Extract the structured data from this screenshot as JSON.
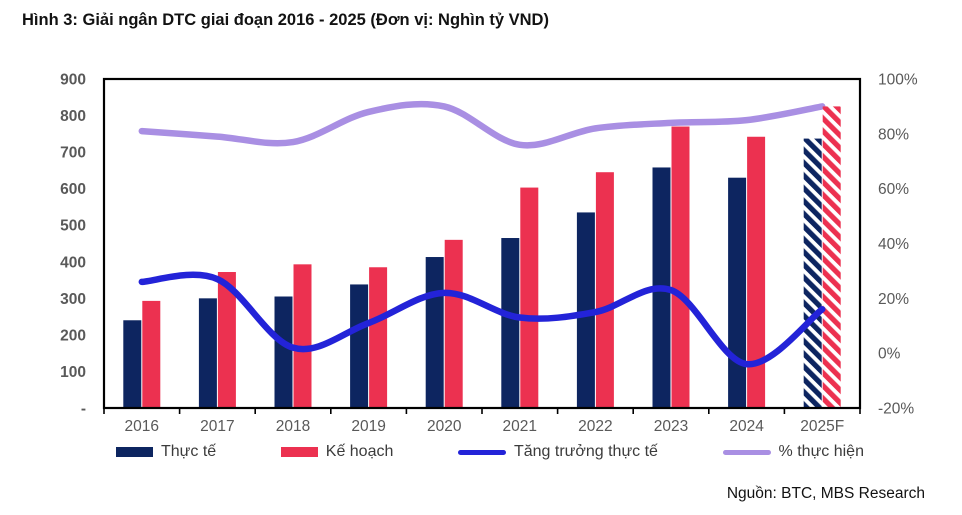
{
  "title": "Hình 3: Giải ngân DTC giai đoạn 2016 - 2025 (Đơn vị: Nghìn tỷ VND)",
  "source": "Nguồn: BTC, MBS Research",
  "colors": {
    "actual": "#0d2560",
    "plan": "#ec3150",
    "growth": "#2323d8",
    "completion": "#a98fe3",
    "axis_text": "#595959",
    "frame": "#000000",
    "legend_text": "#3c3c3c",
    "title_text": "#121212"
  },
  "chart_data": {
    "type": "bar",
    "subtype": "combo-bar-line-dual-axis",
    "categories": [
      "2016",
      "2017",
      "2018",
      "2019",
      "2020",
      "2021",
      "2022",
      "2023",
      "2024",
      "2025F"
    ],
    "series": [
      {
        "name": "Thực tế",
        "type": "bar",
        "axis": "left",
        "color_key": "actual",
        "last_hatched": true,
        "values": [
          240,
          300,
          305,
          338,
          413,
          465,
          535,
          658,
          630,
          737
        ]
      },
      {
        "name": "Kế hoạch",
        "type": "bar",
        "axis": "left",
        "color_key": "plan",
        "last_hatched": true,
        "values": [
          293,
          372,
          393,
          385,
          460,
          603,
          645,
          770,
          742,
          825
        ]
      },
      {
        "name": "Tăng trưởng thực tế",
        "type": "line",
        "axis": "right",
        "color_key": "growth",
        "values": [
          26,
          27,
          2,
          11,
          22,
          13,
          15,
          23,
          -4,
          16
        ]
      },
      {
        "name": "% thực hiện",
        "type": "line",
        "axis": "right",
        "color_key": "completion",
        "values": [
          81,
          79,
          77,
          88,
          90,
          76,
          82,
          84,
          85,
          90
        ]
      }
    ],
    "left_axis": {
      "min": 0,
      "max": 900,
      "tick_labels": [
        "900",
        "800",
        "700",
        "600",
        "500",
        "400",
        "300",
        "200",
        "100",
        "-"
      ],
      "tick_values": [
        900,
        800,
        700,
        600,
        500,
        400,
        300,
        200,
        100,
        0
      ]
    },
    "right_axis": {
      "min": -20,
      "max": 100,
      "tick_labels": [
        "100%",
        "80%",
        "60%",
        "40%",
        "20%",
        "0%",
        "-20%"
      ],
      "tick_values": [
        100,
        80,
        60,
        40,
        20,
        0,
        -20
      ]
    },
    "grid": false,
    "legend_position": "bottom"
  }
}
